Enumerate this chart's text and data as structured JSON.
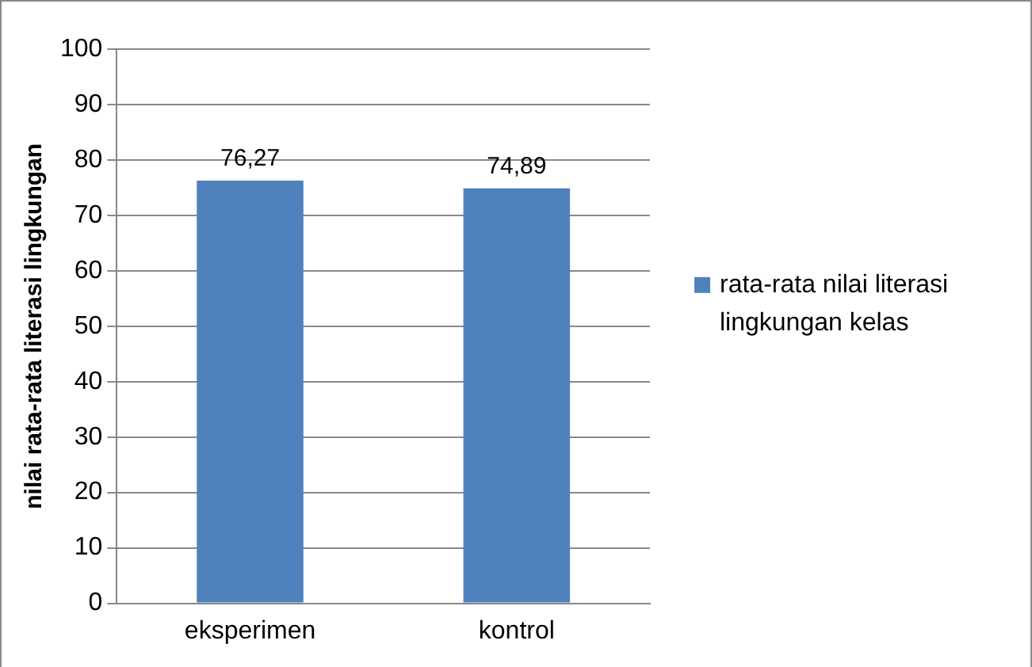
{
  "chart_data": {
    "type": "bar",
    "ylabel": "nilai rata-rata literasi lingkungan",
    "categories": [
      "eksperimen",
      "kontrol"
    ],
    "series": [
      {
        "name": "rata-rata nilai literasi lingkungan kelas",
        "color": "#4f81bd",
        "values": [
          76.27,
          74.89
        ],
        "value_labels": [
          "76,27",
          "74,89"
        ]
      }
    ],
    "ylim": [
      0,
      100
    ],
    "yticks": [
      0,
      10,
      20,
      30,
      40,
      50,
      60,
      70,
      80,
      90,
      100
    ],
    "grid": "y",
    "legend": "right"
  }
}
